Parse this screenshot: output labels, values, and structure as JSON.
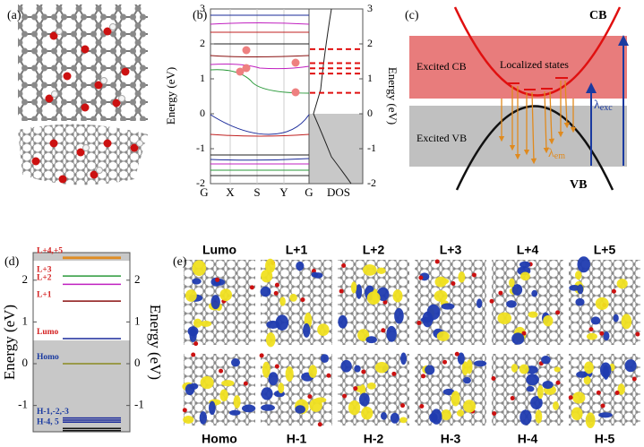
{
  "panels": {
    "a": {
      "label": "(a)"
    },
    "b": {
      "label": "(b)",
      "y_label": "Energy (eV)",
      "ylim": [
        -2,
        3
      ],
      "yticks": [
        3,
        2,
        1,
        0,
        -1,
        -2
      ],
      "x_labels": [
        "G",
        "X",
        "S",
        "Y",
        "G"
      ],
      "dos_label": "DOS",
      "dos_levels": [
        1.85,
        1.45,
        1.3,
        1.15,
        0.6
      ]
    },
    "c": {
      "label": "(c)",
      "cb": "CB",
      "vb": "VB",
      "excited_cb": "Excited CB",
      "excited_vb": "Excited VB",
      "localized": "Localized states",
      "lambda_exc": {
        "symbol": "λ",
        "sub": "exc"
      },
      "lambda_em": {
        "symbol": "λ",
        "sub": "em"
      }
    },
    "d": {
      "label": "(d)",
      "y_label": "Energy (eV)",
      "ylim": [
        -1.63,
        2.66
      ],
      "yticks": [
        2,
        1,
        0,
        -1
      ],
      "levels": [
        {
          "label": "L+4,+5",
          "energies": [
            2.55,
            2.52
          ],
          "color": "#e08a1e",
          "label_color": "#d42020"
        },
        {
          "label": "L+3",
          "energies": [
            2.1
          ],
          "color": "#2a9a3a",
          "label_color": "#d42020"
        },
        {
          "label": "L+2",
          "energies": [
            1.9
          ],
          "color": "#c020c0",
          "label_color": "#d42020"
        },
        {
          "label": "L+1",
          "energies": [
            1.5
          ],
          "color": "#8a1010",
          "label_color": "#d42020"
        },
        {
          "label": "Lumo",
          "energies": [
            0.6
          ],
          "color": "#1a2a9a",
          "label_color": "#d42020"
        },
        {
          "label": "Homo",
          "energies": [
            0
          ],
          "color": "#8a8a20",
          "label_color": "#1a3aa0"
        },
        {
          "label": "H-1,-2,-3",
          "energies": [
            -1.3,
            -1.35,
            -1.4
          ],
          "color": "#1a2a9a",
          "label_color": "#1a3aa0"
        },
        {
          "label": "H-4, 5",
          "energies": [
            -1.55,
            -1.6
          ],
          "color": "#111111",
          "label_color": "#1a3aa0"
        }
      ]
    },
    "e": {
      "label": "(e)",
      "top": [
        "Lumo",
        "L+1",
        "L+2",
        "L+3",
        "L+4",
        "L+5"
      ],
      "bottom": [
        "Homo",
        "H-1",
        "H-2",
        "H-3",
        "H-4",
        "H-5"
      ]
    }
  }
}
